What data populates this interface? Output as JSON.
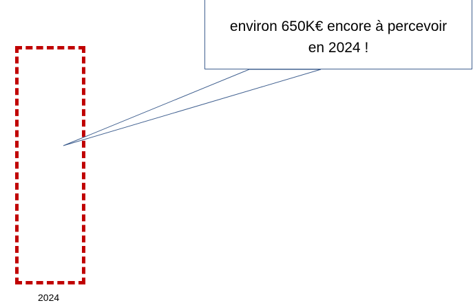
{
  "callout": {
    "text": "environ 650K€ encore à percevoir en 2024 !"
  },
  "highlight": {
    "year_label": "2024",
    "border_color": "#c00000",
    "line_color": "#3f5f8f"
  }
}
